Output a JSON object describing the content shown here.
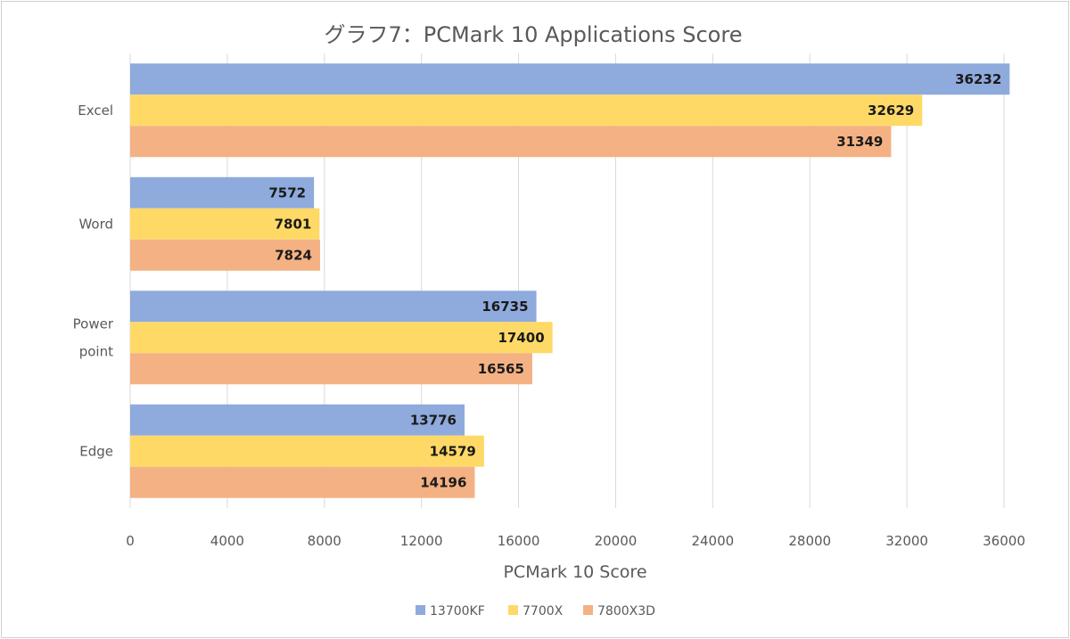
{
  "chart_data": {
    "type": "bar",
    "orientation": "horizontal",
    "title": "グラフ7：PCMark 10 Applications Score",
    "xlabel": "PCMark 10 Score",
    "ylabel": "",
    "xlim": [
      0,
      36000
    ],
    "x_ticks": [
      0,
      4000,
      8000,
      12000,
      16000,
      20000,
      24000,
      28000,
      32000,
      36000
    ],
    "grid": true,
    "legend_position": "bottom",
    "categories": [
      {
        "id": "excel",
        "lines": [
          "Excel"
        ]
      },
      {
        "id": "word",
        "lines": [
          "Word"
        ]
      },
      {
        "id": "powerpoint",
        "lines": [
          "Power",
          "point"
        ]
      },
      {
        "id": "edge",
        "lines": [
          "Edge"
        ]
      }
    ],
    "series": [
      {
        "name": "13700KF",
        "color": "#8faadc",
        "values": [
          36232,
          7572,
          16735,
          13776
        ]
      },
      {
        "name": "7700X",
        "color": "#ffd966",
        "values": [
          32629,
          7801,
          17400,
          14579
        ]
      },
      {
        "name": "7800X3D",
        "color": "#f4b183",
        "values": [
          31349,
          7824,
          16565,
          14196
        ]
      }
    ]
  }
}
